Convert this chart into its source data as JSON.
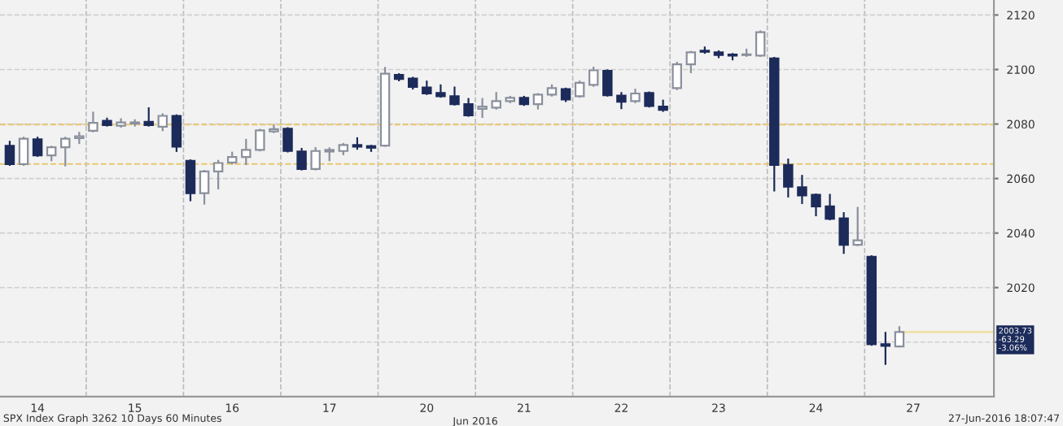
{
  "chart_data": {
    "type": "candlestick",
    "categories": [
      null,
      null,
      "14",
      null,
      null,
      null,
      null,
      null,
      null,
      "15",
      null,
      null,
      null,
      null,
      null,
      null,
      "16",
      null,
      null,
      null,
      null,
      null,
      null,
      "17",
      null,
      null,
      null,
      null,
      null,
      null,
      "20",
      null,
      null,
      null,
      null,
      null,
      null,
      "21",
      null,
      null,
      null,
      null,
      null,
      null,
      "22",
      null,
      null,
      null,
      null,
      null,
      null,
      "23",
      null,
      null,
      null,
      null,
      null,
      null,
      "24",
      null,
      null,
      null,
      null,
      null,
      null,
      "27",
      null,
      null,
      null
    ],
    "ohlc": [
      [
        2072,
        2073.5,
        2065,
        2065.3
      ],
      [
        2065.3,
        2075,
        2065,
        2074.6
      ],
      [
        2074.4,
        2075,
        2068.3,
        2068.5
      ],
      [
        2068.5,
        2071.7,
        2066.7,
        2071.5
      ],
      [
        2071.5,
        2075,
        2064.8,
        2074.6
      ],
      [
        2074.8,
        2076.8,
        2073,
        2075.5
      ],
      [
        2077.5,
        2084.2,
        2077.3,
        2080.4
      ],
      [
        2081.2,
        2082,
        2079.4,
        2079.6
      ],
      [
        2079.4,
        2081.8,
        2079,
        2080.6
      ],
      [
        2080.2,
        2081.4,
        2079.4,
        2080.6
      ],
      [
        2080.8,
        2085.8,
        2079.4,
        2079.6
      ],
      [
        2079,
        2083.6,
        2077.7,
        2083
      ],
      [
        2083,
        2083.2,
        2070.1,
        2071.7
      ],
      [
        2066.5,
        2066.7,
        2052,
        2054.6
      ],
      [
        2054.6,
        2062.8,
        2050.8,
        2062.6
      ],
      [
        2062.6,
        2066.5,
        2056.4,
        2065.7
      ],
      [
        2065.9,
        2069.5,
        2065.5,
        2067.9
      ],
      [
        2067.9,
        2074.2,
        2065.3,
        2070.5
      ],
      [
        2070.5,
        2077.9,
        2070.3,
        2077.7
      ],
      [
        2077.3,
        2079.4,
        2077,
        2078.1
      ],
      [
        2078.3,
        2078.5,
        2069.9,
        2070.1
      ],
      [
        2069.9,
        2070.9,
        2063.3,
        2063.5
      ],
      [
        2063.5,
        2071.2,
        2063.3,
        2070.1
      ],
      [
        2069.9,
        2071.1,
        2066.7,
        2070.5
      ],
      [
        2070.1,
        2072.7,
        2068.9,
        2072.3
      ],
      [
        2072.3,
        2074.8,
        2070.9,
        2071.7
      ],
      [
        2071.9,
        2072,
        2070.1,
        2071.3
      ],
      [
        2072.1,
        2100.6,
        2072,
        2098.5
      ],
      [
        2098,
        2098.3,
        2096,
        2096.5
      ],
      [
        2096.7,
        2097,
        2093,
        2093.6
      ],
      [
        2093.4,
        2095.6,
        2091,
        2091.2
      ],
      [
        2091.4,
        2094.2,
        2090,
        2090.2
      ],
      [
        2090.2,
        2093.4,
        2087.1,
        2087.3
      ],
      [
        2087.3,
        2089.2,
        2083,
        2083.2
      ],
      [
        2085.6,
        2089.2,
        2082.6,
        2086.4
      ],
      [
        2086,
        2091.4,
        2085.6,
        2088.4
      ],
      [
        2088.4,
        2090,
        2088,
        2089.6
      ],
      [
        2089.6,
        2090,
        2087,
        2087.3
      ],
      [
        2087.3,
        2091,
        2085.7,
        2090.8
      ],
      [
        2090.8,
        2094.2,
        2090.4,
        2093.2
      ],
      [
        2092.8,
        2093,
        2088.4,
        2089
      ],
      [
        2090.2,
        2095.6,
        2090,
        2095.1
      ],
      [
        2094.4,
        2100.7,
        2094,
        2099.7
      ],
      [
        2099.5,
        2099.7,
        2090.4,
        2090.6
      ],
      [
        2090.4,
        2091.4,
        2085.8,
        2088.2
      ],
      [
        2088.4,
        2092.6,
        2088,
        2091.2
      ],
      [
        2091.4,
        2091.6,
        2086.4,
        2086.6
      ],
      [
        2086.4,
        2088.6,
        2084.8,
        2085.2
      ],
      [
        2093.2,
        2102.5,
        2092.8,
        2101.9
      ],
      [
        2101.9,
        2106.5,
        2099,
        2106.3
      ],
      [
        2106.9,
        2108.1,
        2106.1,
        2106.5
      ],
      [
        2106.3,
        2106.7,
        2104.5,
        2105.3
      ],
      [
        2105.5,
        2105.7,
        2103.7,
        2105.1
      ],
      [
        2105.3,
        2107.3,
        2105,
        2105.5
      ],
      [
        2105.1,
        2114,
        2105,
        2113.7
      ],
      [
        2104.1,
        2104.3,
        2055.6,
        2065
      ],
      [
        2065,
        2067,
        2053.4,
        2057
      ],
      [
        2056.8,
        2061,
        2051,
        2053.8
      ],
      [
        2054,
        2054.2,
        2046.5,
        2049.8
      ],
      [
        2049.8,
        2054,
        2045,
        2045.2
      ],
      [
        2045.4,
        2047.3,
        2032.7,
        2035.7
      ],
      [
        2035.7,
        2049.3,
        2035.5,
        2037.3
      ],
      [
        2031.3,
        2031.5,
        1999,
        1999.2
      ],
      [
        1999.2,
        2003.4,
        1992,
        1998.6
      ],
      [
        1998.4,
        2005.5,
        1998.4,
        2003.7
      ],
      null,
      null,
      null,
      null
    ],
    "colors": [
      "#1c2b5a",
      "#ffffff",
      "#1c2b5a",
      "#ffffff",
      "#ffffff",
      "#ffffff",
      "#ffffff",
      "#1c2b5a",
      "#ffffff",
      "#ffffff",
      "#1c2b5a",
      "#ffffff",
      "#1c2b5a",
      "#1c2b5a",
      "#ffffff",
      "#ffffff",
      "#ffffff",
      "#ffffff",
      "#ffffff",
      "#ffffff",
      "#1c2b5a",
      "#1c2b5a",
      "#ffffff",
      "#ffffff",
      "#ffffff",
      "#1c2b5a",
      "#1c2b5a",
      "#ffffff",
      "#1c2b5a",
      "#1c2b5a",
      "#1c2b5a",
      "#1c2b5a",
      "#1c2b5a",
      "#1c2b5a",
      "#ffffff",
      "#ffffff",
      "#ffffff",
      "#1c2b5a",
      "#ffffff",
      "#ffffff",
      "#1c2b5a",
      "#ffffff",
      "#ffffff",
      "#1c2b5a",
      "#1c2b5a",
      "#ffffff",
      "#1c2b5a",
      "#1c2b5a",
      "#ffffff",
      "#ffffff",
      "#1c2b5a",
      "#1c2b5a",
      "#1c2b5a",
      "#ffffff",
      "#ffffff",
      "#1c2b5a",
      "#1c2b5a",
      "#1c2b5a",
      "#1c2b5a",
      "#1c2b5a",
      "#1c2b5a",
      "#ffffff",
      "#1c2b5a",
      "#1c2b5a",
      "#ffffff",
      null,
      null,
      null,
      null
    ],
    "ylim": [
      1980,
      2125.5
    ],
    "yticks": [
      2020,
      2040,
      2060,
      2080,
      2100,
      2120,
      {
        "value": 2000,
        "label": null
      }
    ],
    "grid": true,
    "ref_lines": [
      {
        "axis": "y",
        "value": 2079.8,
        "color": "#e8c870",
        "line_style": "dashed"
      },
      {
        "axis": "y",
        "value": 2065.3,
        "color": "#e8c870",
        "line_style": "dashed"
      },
      {
        "axis": "y",
        "value": 2003.73,
        "color": "#efe2a8",
        "line_style": "solid",
        "label": "2003.73\n-63.29\n-3.06%"
      }
    ],
    "annotations": [
      "Jun 2016",
      "SPX Index Graph 3262 10 Days 60 Minutes",
      "27-Jun-2016 18:07:47"
    ]
  }
}
